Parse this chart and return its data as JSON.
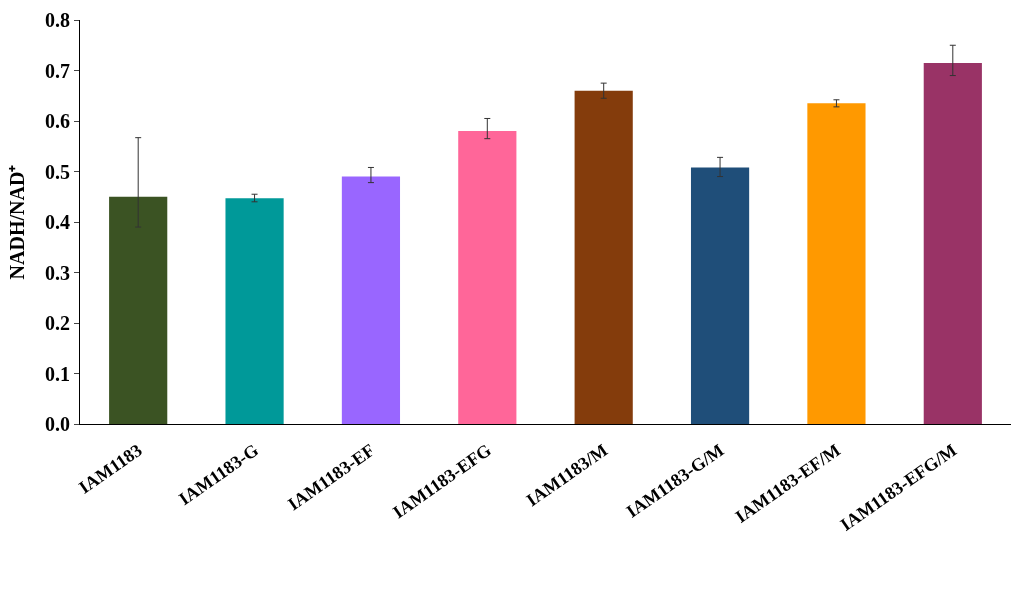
{
  "chart_data": {
    "type": "bar",
    "ylabel": "NADH/NAD⁺",
    "categories": [
      "IAM1183",
      "IAM1183-G",
      "IAM1183-EF",
      "IAM1183-EFG",
      "IAM1183/M",
      "IAM1183-G/M",
      "IAM1183-EF/M",
      "IAM1183-EFG/M"
    ],
    "values": [
      0.45,
      0.447,
      0.49,
      0.58,
      0.66,
      0.508,
      0.635,
      0.715
    ],
    "colors": [
      "#3b5323",
      "#009999",
      "#9966ff",
      "#ff6699",
      "#843c0c",
      "#1f4e79",
      "#ff9900",
      "#993366"
    ],
    "errors": [
      [
        0.39,
        0.567
      ],
      [
        0.44,
        0.455
      ],
      [
        0.478,
        0.508
      ],
      [
        0.565,
        0.605
      ],
      [
        0.645,
        0.675
      ],
      [
        0.49,
        0.528
      ],
      [
        0.628,
        0.642
      ],
      [
        0.69,
        0.75
      ]
    ],
    "ylim": [
      0,
      0.8
    ],
    "yticks": [
      {
        "value": 0,
        "label": "0.0"
      },
      0.1,
      0.2,
      0.3,
      0.4,
      0.5,
      0.6,
      0.7,
      0.8
    ]
  }
}
